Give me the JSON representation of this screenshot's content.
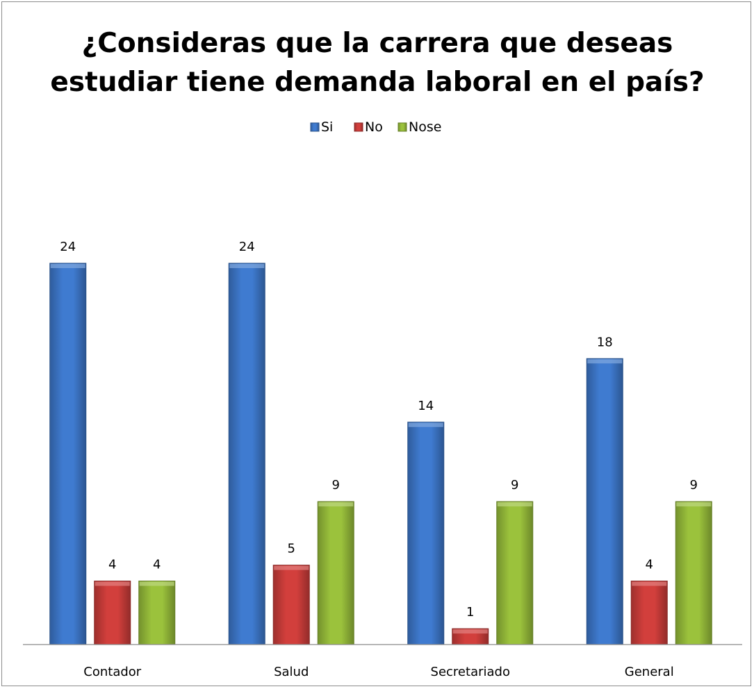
{
  "chart_data": {
    "type": "bar",
    "title_lines": [
      "¿Consideras que la carrera que deseas",
      "estudiar tiene demanda laboral en el país?"
    ],
    "categories": [
      "Contador",
      "Salud",
      "Secretariado",
      "General"
    ],
    "series": [
      {
        "name": "Si",
        "values": [
          24,
          24,
          14,
          18
        ],
        "color": "#3f7bd0"
      },
      {
        "name": "No",
        "values": [
          4,
          5,
          1,
          4
        ],
        "color": "#d23f3c"
      },
      {
        "name": "Nose",
        "values": [
          4,
          9,
          9,
          9
        ],
        "color": "#9bc23c"
      }
    ],
    "ylim": [
      0,
      24
    ],
    "legend_position": "top",
    "grid": false,
    "data_labels": true
  }
}
